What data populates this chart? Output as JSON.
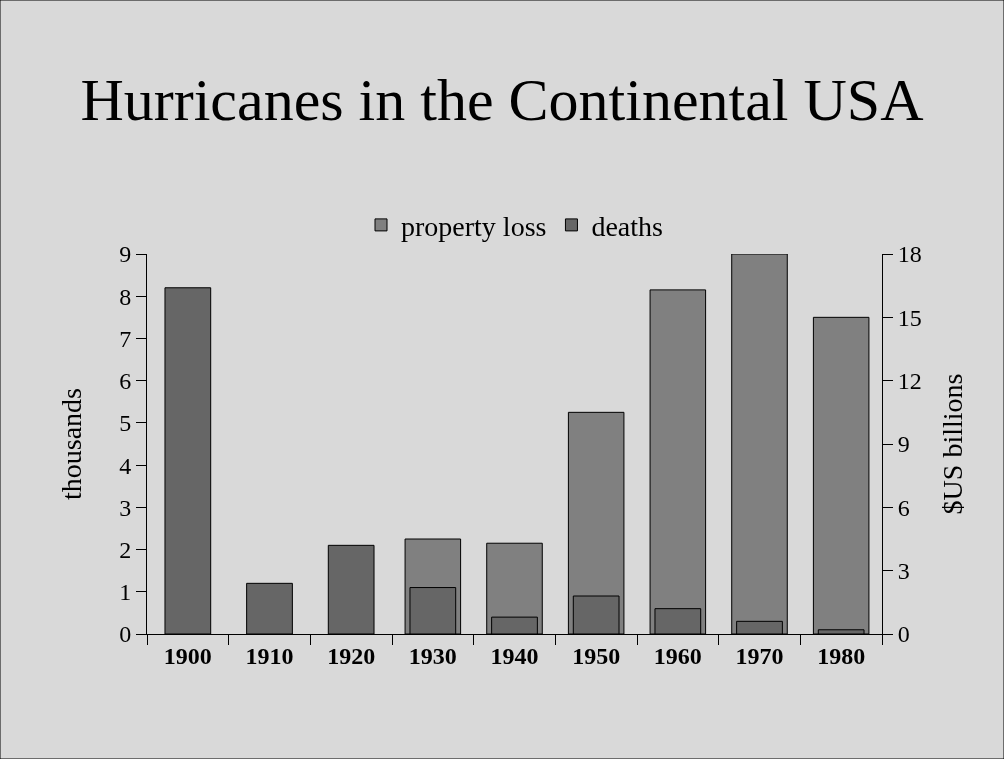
{
  "chart_data": {
    "type": "bar",
    "title": "Hurricanes in the Continental USA",
    "categories": [
      "1900",
      "1910",
      "1920",
      "1930",
      "1940",
      "1950",
      "1960",
      "1970",
      "1980"
    ],
    "series": [
      {
        "name": "property loss",
        "color": "#808080",
        "axis": "y2",
        "values": [
          null,
          null,
          null,
          4.5,
          4.3,
          10.5,
          16.3,
          18,
          15
        ]
      },
      {
        "name": "deaths",
        "color": "#666666",
        "values": [
          8.2,
          1.2,
          2.1,
          1.1,
          0.4,
          0.9,
          0.6,
          0.3,
          0.1
        ]
      }
    ],
    "ylabel": "thousands",
    "y2label": "$US billions",
    "ylim": [
      0,
      9
    ],
    "yticks": [
      0,
      1,
      2,
      3,
      4,
      5,
      6,
      7,
      8,
      9
    ],
    "y2lim": [
      0,
      18
    ],
    "y2ticks": [
      0,
      3,
      6,
      9,
      12,
      15,
      18
    ],
    "grid": false,
    "legend": "top"
  }
}
